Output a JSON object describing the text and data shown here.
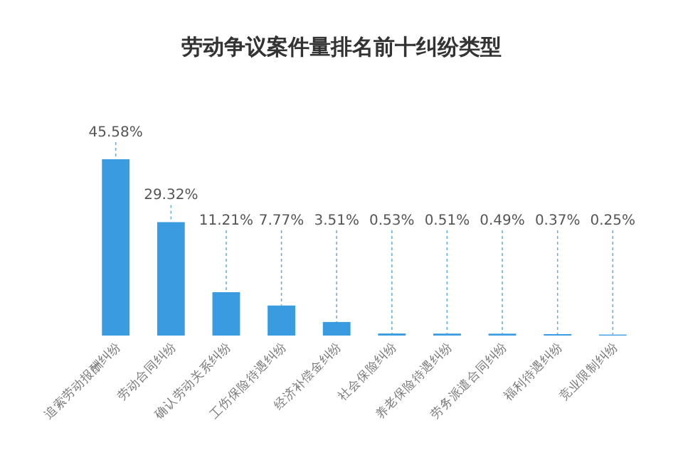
{
  "chart_data": {
    "type": "bar",
    "title": "劳动争议案件量排名前十纠纷类型",
    "categories": [
      "追索劳动报酬纠纷",
      "劳动合同纠纷",
      "确认劳动关系纠纷",
      "工伤保险待遇纠纷",
      "经济补偿金纠纷",
      "社会保险纠纷",
      "养老保险待遇纠纷",
      "劳务派遣合同纠纷",
      "福利待遇纠纷",
      "竞业限制纠纷"
    ],
    "values": [
      45.58,
      29.32,
      11.21,
      7.77,
      3.51,
      0.53,
      0.51,
      0.49,
      0.37,
      0.25
    ],
    "value_labels": [
      "45.58%",
      "29.32%",
      "11.21%",
      "7.77%",
      "3.51%",
      "0.53%",
      "0.51%",
      "0.49%",
      "0.37%",
      "0.25%"
    ],
    "color": "#3a9be0"
  }
}
